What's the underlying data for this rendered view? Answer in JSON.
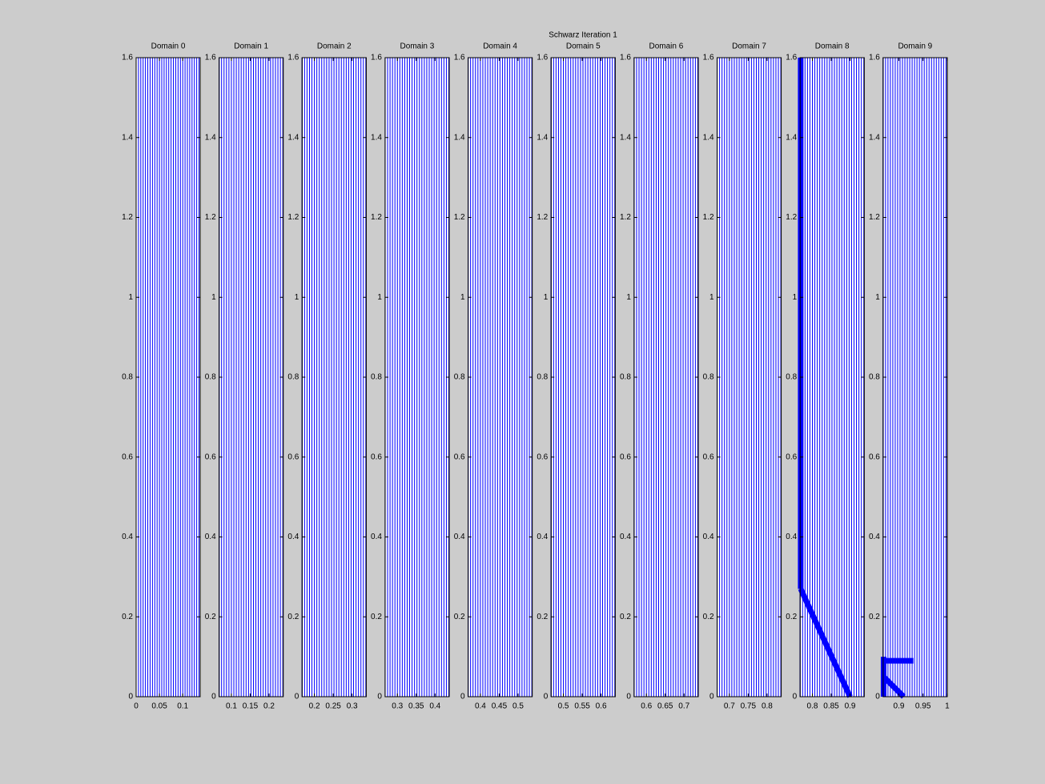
{
  "title": "Schwarz Iteration 1",
  "chart_data": [
    {
      "type": "mesh",
      "title": "Domain 0",
      "color": "#0000ff",
      "xlim": [
        0,
        0.1375
      ],
      "xticks": [
        0,
        0.05,
        0.1
      ],
      "ylim": [
        0,
        1.6
      ],
      "yticks": [
        0,
        0.2,
        0.4,
        0.6,
        0.8,
        1,
        1.2,
        1.4,
        1.6
      ],
      "x": [
        0,
        0.005,
        0.01,
        0.015,
        0.02,
        0.025,
        0.03,
        0.035,
        0.04,
        0.045,
        0.05,
        0.055,
        0.06,
        0.065,
        0.07,
        0.075,
        0.08,
        0.085,
        0.09,
        0.095,
        0.1,
        0.105,
        0.11,
        0.115,
        0.12,
        0.125,
        0.13,
        0.135
      ]
    },
    {
      "type": "mesh",
      "title": "Domain 1",
      "color": "#0000ff",
      "xlim": [
        0.0675,
        0.2375
      ],
      "xticks": [
        0.1,
        0.15,
        0.2
      ],
      "ylim": [
        0,
        1.6
      ],
      "yticks": [
        0,
        0.2,
        0.4,
        0.6,
        0.8,
        1,
        1.2,
        1.4,
        1.6
      ],
      "x": [
        0.0675,
        0.074,
        0.0805,
        0.087,
        0.0935,
        0.1,
        0.1065,
        0.113,
        0.1195,
        0.126,
        0.1325,
        0.139,
        0.1455,
        0.152,
        0.1585,
        0.165,
        0.1715,
        0.178,
        0.1845,
        0.191,
        0.1975,
        0.204,
        0.2105,
        0.217,
        0.2235,
        0.23,
        0.2365
      ]
    },
    {
      "type": "mesh",
      "title": "Domain 2",
      "color": "#0000ff",
      "xlim": [
        0.1675,
        0.3375
      ],
      "xticks": [
        0.2,
        0.25,
        0.3
      ],
      "ylim": [
        0,
        1.6
      ],
      "yticks": [
        0,
        0.2,
        0.4,
        0.6,
        0.8,
        1,
        1.2,
        1.4,
        1.6
      ],
      "x": [
        0.1675,
        0.174,
        0.1805,
        0.187,
        0.1935,
        0.2,
        0.2065,
        0.213,
        0.2195,
        0.226,
        0.2325,
        0.239,
        0.2455,
        0.252,
        0.2585,
        0.265,
        0.2715,
        0.278,
        0.2845,
        0.291,
        0.2975,
        0.304,
        0.3105,
        0.317,
        0.3235,
        0.33,
        0.3365
      ]
    },
    {
      "type": "mesh",
      "title": "Domain 3",
      "color": "#0000ff",
      "xlim": [
        0.2675,
        0.4375
      ],
      "xticks": [
        0.3,
        0.35,
        0.4
      ],
      "ylim": [
        0,
        1.6
      ],
      "yticks": [
        0,
        0.2,
        0.4,
        0.6,
        0.8,
        1,
        1.2,
        1.4,
        1.6
      ],
      "x": [
        0.2675,
        0.274,
        0.2805,
        0.287,
        0.2935,
        0.3,
        0.3065,
        0.313,
        0.3195,
        0.326,
        0.3325,
        0.339,
        0.3455,
        0.352,
        0.3585,
        0.365,
        0.3715,
        0.378,
        0.3845,
        0.391,
        0.3975,
        0.404,
        0.4105,
        0.417,
        0.4235,
        0.43,
        0.4365
      ]
    },
    {
      "type": "mesh",
      "title": "Domain 4",
      "color": "#0000ff",
      "xlim": [
        0.3675,
        0.5375
      ],
      "xticks": [
        0.4,
        0.45,
        0.5
      ],
      "ylim": [
        0,
        1.6
      ],
      "yticks": [
        0,
        0.2,
        0.4,
        0.6,
        0.8,
        1,
        1.2,
        1.4,
        1.6
      ],
      "x": [
        0.3675,
        0.374,
        0.3805,
        0.387,
        0.3935,
        0.4,
        0.4065,
        0.413,
        0.4195,
        0.426,
        0.4325,
        0.439,
        0.4455,
        0.452,
        0.4585,
        0.465,
        0.4715,
        0.478,
        0.4845,
        0.491,
        0.4975,
        0.504,
        0.5105,
        0.517,
        0.5235,
        0.53,
        0.5365
      ]
    },
    {
      "type": "mesh",
      "title": "Domain 5",
      "color": "#0000ff",
      "xlim": [
        0.4675,
        0.6375
      ],
      "xticks": [
        0.5,
        0.55,
        0.6
      ],
      "ylim": [
        0,
        1.6
      ],
      "yticks": [
        0,
        0.2,
        0.4,
        0.6,
        0.8,
        1,
        1.2,
        1.4,
        1.6
      ],
      "x": [
        0.4675,
        0.474,
        0.4805,
        0.487,
        0.4935,
        0.5,
        0.5065,
        0.513,
        0.5195,
        0.526,
        0.5325,
        0.539,
        0.5455,
        0.552,
        0.5585,
        0.565,
        0.5715,
        0.578,
        0.5845,
        0.591,
        0.5975,
        0.604,
        0.6105,
        0.617,
        0.6235,
        0.63,
        0.6365
      ]
    },
    {
      "type": "mesh",
      "title": "Domain 6",
      "color": "#0000ff",
      "xlim": [
        0.5675,
        0.7375
      ],
      "xticks": [
        0.6,
        0.65,
        0.7
      ],
      "ylim": [
        0,
        1.6
      ],
      "yticks": [
        0,
        0.2,
        0.4,
        0.6,
        0.8,
        1,
        1.2,
        1.4,
        1.6
      ],
      "x": [
        0.5675,
        0.574,
        0.5805,
        0.587,
        0.5935,
        0.6,
        0.6065,
        0.613,
        0.6195,
        0.626,
        0.6325,
        0.639,
        0.6455,
        0.652,
        0.6585,
        0.665,
        0.6715,
        0.678,
        0.6845,
        0.691,
        0.6975,
        0.704,
        0.7105,
        0.717,
        0.7235,
        0.73,
        0.7365
      ]
    },
    {
      "type": "mesh",
      "title": "Domain 7",
      "color": "#0000ff",
      "xlim": [
        0.6675,
        0.8375
      ],
      "xticks": [
        0.7,
        0.75,
        0.8
      ],
      "ylim": [
        0,
        1.6
      ],
      "yticks": [
        0,
        0.2,
        0.4,
        0.6,
        0.8,
        1,
        1.2,
        1.4,
        1.6
      ],
      "x": [
        0.6675,
        0.674,
        0.6805,
        0.687,
        0.6935,
        0.7,
        0.7065,
        0.713,
        0.7195,
        0.726,
        0.7325,
        0.739,
        0.7455,
        0.752,
        0.7585,
        0.765,
        0.7715,
        0.778,
        0.7845,
        0.791,
        0.7975,
        0.804,
        0.8105,
        0.817,
        0.8235,
        0.83,
        0.8365
      ]
    },
    {
      "type": "mesh",
      "title": "Domain 8",
      "color": "#0000ff",
      "xlim": [
        0.7675,
        0.9375
      ],
      "xticks": [
        0.8,
        0.85,
        0.9
      ],
      "ylim": [
        0,
        1.6
      ],
      "yticks": [
        0,
        0.2,
        0.4,
        0.6,
        0.8,
        1,
        1.2,
        1.4,
        1.6
      ],
      "x": [
        0.7675,
        0.774,
        0.7805,
        0.787,
        0.7935,
        0.8,
        0.8065,
        0.813,
        0.8195,
        0.826,
        0.8325,
        0.839,
        0.8455,
        0.852,
        0.8585,
        0.865,
        0.8715,
        0.878,
        0.8845,
        0.891,
        0.8975,
        0.904,
        0.9105,
        0.917,
        0.9235,
        0.93,
        0.9365
      ],
      "curves": [
        {
          "x": [
            0.769,
            0.769
          ],
          "y": [
            0.27,
            1.6
          ]
        },
        {
          "x": [
            0.769,
            0.9
          ],
          "y": [
            0.27,
            0
          ]
        }
      ]
    },
    {
      "type": "mesh",
      "title": "Domain 9",
      "color": "#0000ff",
      "xlim": [
        0.8675,
        1
      ],
      "xticks": [
        0.9,
        0.95,
        1
      ],
      "ylim": [
        0,
        1.6
      ],
      "yticks": [
        0,
        0.2,
        0.4,
        0.6,
        0.8,
        1,
        1.2,
        1.4,
        1.6
      ],
      "x": [
        0.8675,
        0.8725,
        0.8775,
        0.8825,
        0.8875,
        0.8925,
        0.8975,
        0.9025,
        0.9075,
        0.9125,
        0.9175,
        0.9225,
        0.9275,
        0.9325,
        0.9375,
        0.9425,
        0.9475,
        0.9525,
        0.9575,
        0.9625,
        0.9675,
        0.9725,
        0.9775,
        0.9825,
        0.9875,
        0.9925,
        0.9975
      ],
      "curves": [
        {
          "x": [
            0.8685,
            0.93
          ],
          "y": [
            0.09,
            0.09
          ]
        },
        {
          "x": [
            0.8685,
            0.91
          ],
          "y": [
            0.05,
            0
          ]
        },
        {
          "x": [
            0.8685,
            0.8685
          ],
          "y": [
            0,
            0.1
          ]
        }
      ]
    }
  ]
}
